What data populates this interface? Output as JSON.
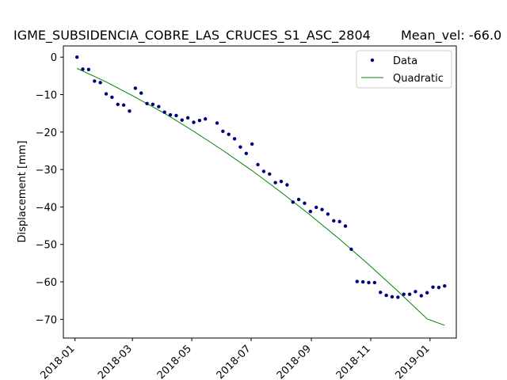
{
  "chart_data": {
    "type": "scatter",
    "title": "IGME_SUBSIDENCIA_COBRE_LAS_CRUCES_S1_ASC_2804",
    "title_right": "Mean_vel: -66.0",
    "xlabel": "",
    "ylabel": "Displacement [mm]",
    "ylim": [
      -75,
      3
    ],
    "xlim": [
      "2017-12-20",
      "2019-01-28"
    ],
    "grid": false,
    "legend": "top-right",
    "x_ticks": [
      "2018-01",
      "2018-03",
      "2018-05",
      "2018-07",
      "2018-09",
      "2018-11",
      "2019-01"
    ],
    "y_ticks": [
      0,
      -10,
      -20,
      -30,
      -40,
      -50,
      -60,
      -70
    ],
    "colors": {
      "data": "#000080",
      "fit": "#008000"
    },
    "series": [
      {
        "name": "Data",
        "type": "scatter",
        "x": [
          "2018-01-03",
          "2018-01-09",
          "2018-01-15",
          "2018-01-21",
          "2018-01-27",
          "2018-02-02",
          "2018-02-08",
          "2018-02-14",
          "2018-02-20",
          "2018-02-26",
          "2018-03-04",
          "2018-03-10",
          "2018-03-16",
          "2018-03-22",
          "2018-03-28",
          "2018-04-03",
          "2018-04-09",
          "2018-04-15",
          "2018-04-21",
          "2018-04-27",
          "2018-05-03",
          "2018-05-09",
          "2018-05-15",
          "2018-05-27",
          "2018-06-02",
          "2018-06-08",
          "2018-06-14",
          "2018-06-20",
          "2018-06-26",
          "2018-07-02",
          "2018-07-08",
          "2018-07-14",
          "2018-07-20",
          "2018-07-26",
          "2018-08-01",
          "2018-08-07",
          "2018-08-13",
          "2018-08-19",
          "2018-08-25",
          "2018-08-31",
          "2018-09-06",
          "2018-09-12",
          "2018-09-18",
          "2018-09-24",
          "2018-09-30",
          "2018-10-06",
          "2018-10-12",
          "2018-10-18",
          "2018-10-24",
          "2018-10-30",
          "2018-11-05",
          "2018-11-11",
          "2018-11-17",
          "2018-11-23",
          "2018-11-29",
          "2018-12-05",
          "2018-12-11",
          "2018-12-17",
          "2018-12-23",
          "2018-12-29",
          "2019-01-04",
          "2019-01-10",
          "2019-01-16"
        ],
        "values": [
          0,
          -3.2,
          -3.3,
          -6.4,
          -6.8,
          -9.8,
          -10.7,
          -12.6,
          -12.8,
          -14.4,
          -8.3,
          -9.6,
          -12.4,
          -12.6,
          -13.2,
          -14.7,
          -15.4,
          -15.6,
          -16.8,
          -16.2,
          -17.4,
          -16.9,
          -16.5,
          -17.6,
          -19.8,
          -20.6,
          -21.8,
          -24.0,
          -25.7,
          -23.2,
          -28.7,
          -30.5,
          -31.2,
          -33.5,
          -33.2,
          -34.1,
          -38.7,
          -38.0,
          -39.0,
          -41.2,
          -40.1,
          -40.7,
          -41.9,
          -43.7,
          -43.9,
          -45.1,
          -51.3,
          -59.9,
          -60.0,
          -60.2,
          -60.2,
          -62.8,
          -63.6,
          -64.0,
          -64.1,
          -63.3,
          -63.3,
          -62.6,
          -63.7,
          -62.9,
          -61.4,
          -61.5,
          -61.1
        ]
      },
      {
        "name": "Quadratic",
        "type": "line",
        "x": [
          "2018-01-03",
          "2018-02-02",
          "2018-03-04",
          "2018-04-03",
          "2018-05-03",
          "2018-06-02",
          "2018-07-02",
          "2018-08-01",
          "2018-08-31",
          "2018-09-30",
          "2018-10-30",
          "2018-11-29",
          "2018-12-29",
          "2019-01-16"
        ],
        "values": [
          -3.0,
          -6.6,
          -10.7,
          -15.0,
          -19.8,
          -24.9,
          -30.3,
          -36.1,
          -42.2,
          -48.6,
          -55.4,
          -62.5,
          -69.9,
          -71.6
        ]
      }
    ]
  }
}
